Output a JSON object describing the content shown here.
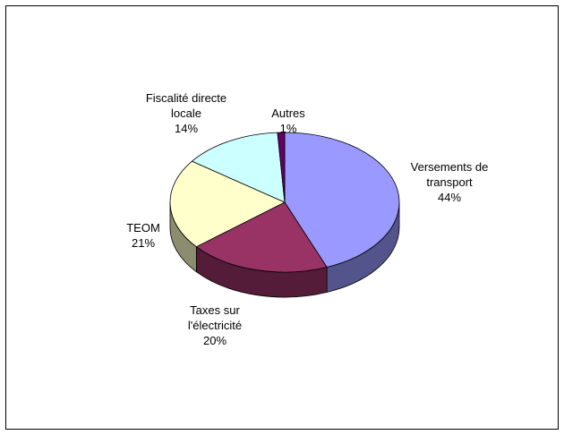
{
  "chart_data": {
    "type": "pie",
    "categories": [
      "Versements de transport",
      "Taxes sur l'électricité",
      "TEOM",
      "Fiscalité directe locale",
      "Autres"
    ],
    "values": [
      44,
      20,
      21,
      14,
      1
    ],
    "value_labels": [
      "44%",
      "20%",
      "21%",
      "14%",
      "1%"
    ],
    "colors": [
      "#9999ff",
      "#993366",
      "#ffffcc",
      "#ccffff",
      "#660066"
    ]
  }
}
